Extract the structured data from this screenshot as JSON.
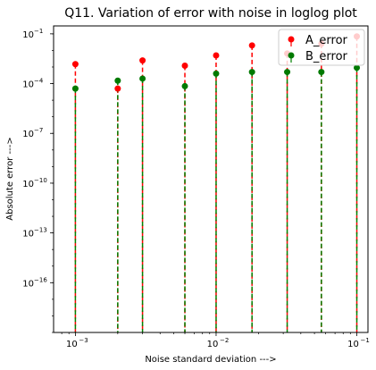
{
  "chart_data": {
    "type": "scatter",
    "title": "Q11. Variation of error with noise in loglog plot",
    "xlabel": "Noise standard deviation   --->",
    "ylabel": "Absolute error   --->",
    "xscale": "log",
    "yscale": "log",
    "xlim": [
      0.0007,
      0.12
    ],
    "ylim": [
      1e-19,
      0.3
    ],
    "grid": false,
    "legend": "top-right",
    "x": [
      0.001,
      0.002,
      0.003,
      0.006,
      0.01,
      0.018,
      0.032,
      0.056,
      0.1
    ],
    "x_ticks": [
      {
        "value": 0.001,
        "label": "10",
        "exp": "−3"
      },
      {
        "value": 0.01,
        "label": "10",
        "exp": "−2"
      },
      {
        "value": 0.1,
        "label": "10",
        "exp": "−1"
      }
    ],
    "y_ticks": [
      {
        "value": 1e-16,
        "label": "10",
        "exp": "−16"
      },
      {
        "value": 1e-13,
        "label": "10",
        "exp": "−13"
      },
      {
        "value": 1e-10,
        "label": "10",
        "exp": "−10"
      },
      {
        "value": 1e-07,
        "label": "10",
        "exp": "−7"
      },
      {
        "value": 0.0001,
        "label": "10",
        "exp": "−4"
      },
      {
        "value": 0.1,
        "label": "10",
        "exp": "−1"
      }
    ],
    "series": [
      {
        "name": "A_error",
        "color": "#ff0000",
        "marker_color": "#ff0000",
        "values": [
          0.0015,
          5e-05,
          0.0025,
          0.0012,
          0.005,
          0.02,
          0.0065,
          0.025,
          0.07
        ]
      },
      {
        "name": "B_error",
        "color": "#008000",
        "marker_color": "#007a00",
        "values": [
          5e-05,
          0.00015,
          0.0002,
          7e-05,
          0.0004,
          0.0005,
          0.0005,
          0.0005,
          0.0009
        ]
      }
    ]
  }
}
